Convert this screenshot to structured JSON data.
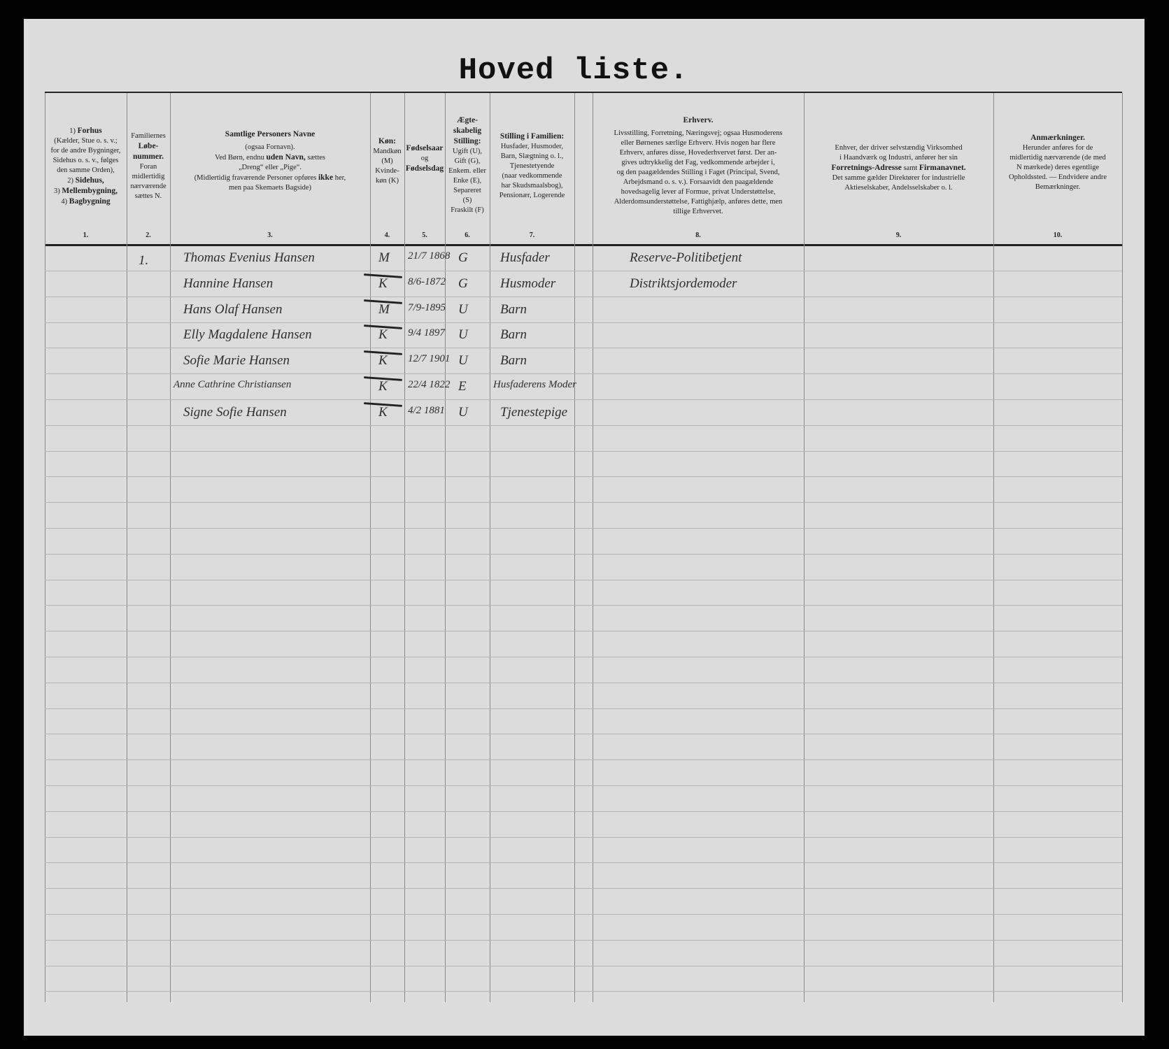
{
  "title": "Hoved liste.",
  "columns": [
    {
      "num": "1.",
      "lines": [
        "1) <b>Forhus</b>",
        "(Kælder, Stue o. s. v.;",
        "for de andre Bygninger,",
        "Sidehus o. s. v., følges",
        "den samme Orden),",
        "2) <b>Sidehus,</b>",
        "3) <b>Mellembygning,</b>",
        "4) <b>Bagbygning</b>"
      ]
    },
    {
      "num": "2.",
      "lines": [
        "Familiernes",
        "<b>Løbe-</b>",
        "<b>nummer.</b>",
        "Foran",
        "midlertidig",
        "nærværende",
        "sættes N."
      ]
    },
    {
      "num": "3.",
      "lines": [
        "<b>Samtlige Personers Navne</b>",
        "(ogsaa Fornavn).",
        "Ved Børn, endnu <b>uden Navn,</b> sættes",
        "„Dreng“ eller „Pige“.",
        "(Midlertidig fraværende Personer opføres <b>ikke</b> her,",
        "men paa Skemaets Bagside)"
      ]
    },
    {
      "num": "4.",
      "lines": [
        "<b>Køn:</b>",
        "Mandkøn",
        "(M)",
        "Kvinde-",
        "køn (K)"
      ]
    },
    {
      "num": "5.",
      "lines": [
        "<b>Fødselsaar</b>",
        "og",
        "<b>Fødselsdag</b>"
      ]
    },
    {
      "num": "6.",
      "lines": [
        "<b>Ægte-</b>",
        "<b>skabelig</b>",
        "<b>Stilling:</b>",
        "Ugift (U),",
        "Gift (G),",
        "Enkem. eller",
        "Enke (E),",
        "Separeret",
        "(S)",
        "Fraskilt (F)"
      ]
    },
    {
      "num": "7.",
      "lines": [
        "<b>Stilling i Familien:</b>",
        "Husfader, Husmoder,",
        "Barn, Slægtning o. l.,",
        "Tjenestetyende",
        "(naar vedkommende",
        "har Skudsmaalsbog),",
        "Pensionær, Logerende"
      ]
    },
    {
      "num": "8.",
      "lines": [
        "<b>Erhverv.</b>",
        "Livsstilling, Forretning, Næringsvej; ogsaa Husmoderens",
        "eller Børnenes særlige Erhverv. Hvis nogen har flere",
        "Erhverv, anføres disse, Hovederhvervet først. Der an-",
        "gives udtrykkelig det Fag, vedkommende arbejder i,",
        "og den paagældendes Stilling i Faget (Principal, Svend,",
        "Arbejdsmand o. s. v.). Forsaavidt den paagældende",
        "hovedsagelig lever af Formue, privat Understøttelse,",
        "Alderdomsunderstøttelse, Fattighjælp, anføres dette, men",
        "tillige Erhvervet."
      ]
    },
    {
      "num": "9.",
      "lines": [
        "Enhver, der driver selvstændig Virksomhed",
        "i Haandværk og Industri, anfører her sin",
        "<b>Forretnings-Adresse</b> samt <b>Firmanavnet.</b>",
        "Det samme gælder Direktører for industrielle",
        "Aktieselskaber, Andelsselskaber o. l."
      ]
    },
    {
      "num": "10.",
      "lines": [
        "<b>Anmærkninger.</b>",
        "Herunder anføres for de",
        "midlertidig nærværende (de med",
        "N mærkede) deres egentlige",
        "Opholdssted. — Endvidere andre",
        "Bemærkninger."
      ]
    }
  ],
  "family_number": "1.",
  "persons": [
    {
      "name": "Thomas Evenius Hansen",
      "sex": "M",
      "born": "21/7 1868",
      "marital": "G",
      "position": "Husfader",
      "occupation": "Reserve-Politibetjent"
    },
    {
      "name": "Hannine Hansen",
      "sex": "K",
      "born": "8/6-1872",
      "marital": "G",
      "position": "Husmoder",
      "occupation": "Distriktsjordemoder"
    },
    {
      "name": "Hans Olaf Hansen",
      "sex": "M",
      "born": "7/9-1895",
      "marital": "U",
      "position": "Barn",
      "occupation": ""
    },
    {
      "name": "Elly Magdalene Hansen",
      "sex": "K",
      "born": "9/4 1897",
      "marital": "U",
      "position": "Barn",
      "occupation": ""
    },
    {
      "name": "Sofie Marie Hansen",
      "sex": "K",
      "born": "12/7 1901",
      "marital": "U",
      "position": "Barn",
      "occupation": ""
    },
    {
      "name": "Anne Cathrine Christiansen",
      "sex": "K",
      "born": "22/4 1822",
      "marital": "E",
      "position": "Husfaderens Moder",
      "occupation": ""
    },
    {
      "name": "Signe Sofie Hansen",
      "sex": "K",
      "born": "4/2 1881",
      "marital": "U",
      "position": "Tjenestepige",
      "occupation": ""
    }
  ]
}
